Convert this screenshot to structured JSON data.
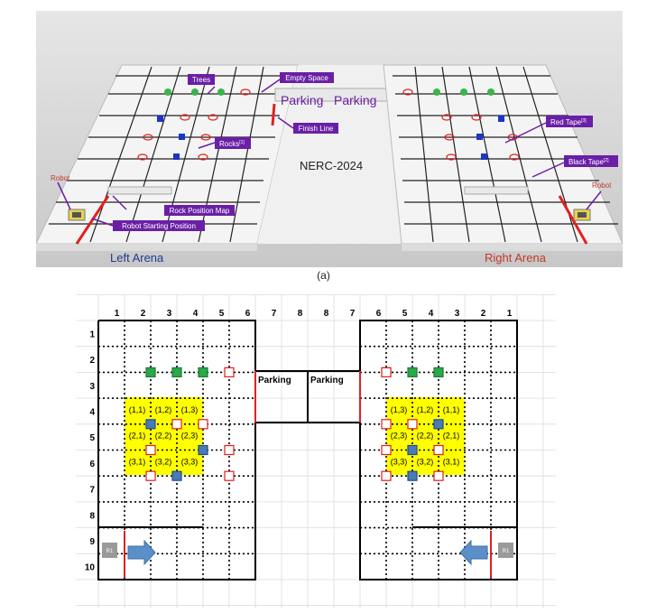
{
  "top": {
    "nerc_title": "NERC-2024",
    "parking_left": "Parking",
    "parking_right": "Parking",
    "left_arena": "Left Arena",
    "right_arena": "Right Arena",
    "callouts": {
      "empty_space": "Empty Space",
      "trees": "Trees",
      "rocks": "Rocks",
      "rocks_sup": "[1]",
      "finish_line": "Finish Line",
      "red_tape": "Red Tape",
      "red_tape_sup": "[3]",
      "black_tape": "Black Tape",
      "black_tape_sup": "[2]",
      "rock_position_map": "Rock Position Map",
      "robot_starting_position": "Robot Starting Position"
    },
    "robot_left": "Robot",
    "robot_right": "Robot",
    "caption": "(a)",
    "colors": {
      "callout_bg": "#6a1fa6",
      "arena_left_label": "#1f3a93",
      "arena_right_label": "#c0392b",
      "parking_text": "#6a1fa6"
    }
  },
  "bottom": {
    "col_labels": [
      "1",
      "2",
      "3",
      "4",
      "5",
      "6",
      "7",
      "8",
      "8",
      "7",
      "6",
      "5",
      "4",
      "3",
      "2",
      "1"
    ],
    "row_labels": [
      "1",
      "2",
      "3",
      "4",
      "5",
      "6",
      "7",
      "8",
      "9",
      "10"
    ],
    "parking_left": "Parking",
    "parking_right": "Parking",
    "left_rock_labels": [
      "(1,1)",
      "(1,2)",
      "(1,3)",
      "(2,1)",
      "(2,2)",
      "(2,3)",
      "(3,1)",
      "(3,2)",
      "(3,3)"
    ],
    "right_rock_labels": [
      "(1,3)",
      "(1,2)",
      "(1,1)",
      "(2,3)",
      "(2,2)",
      "(2,1)",
      "(3,3)",
      "(3,2)",
      "(3,1)"
    ],
    "robot_label_left": "R1",
    "robot_label_right": "R1",
    "colors": {
      "tree": "#2aa84a",
      "rock": "#4a7ab8",
      "zone": "#ffff00",
      "finish": "#e02020",
      "arrow": "#5b8fc7"
    }
  }
}
